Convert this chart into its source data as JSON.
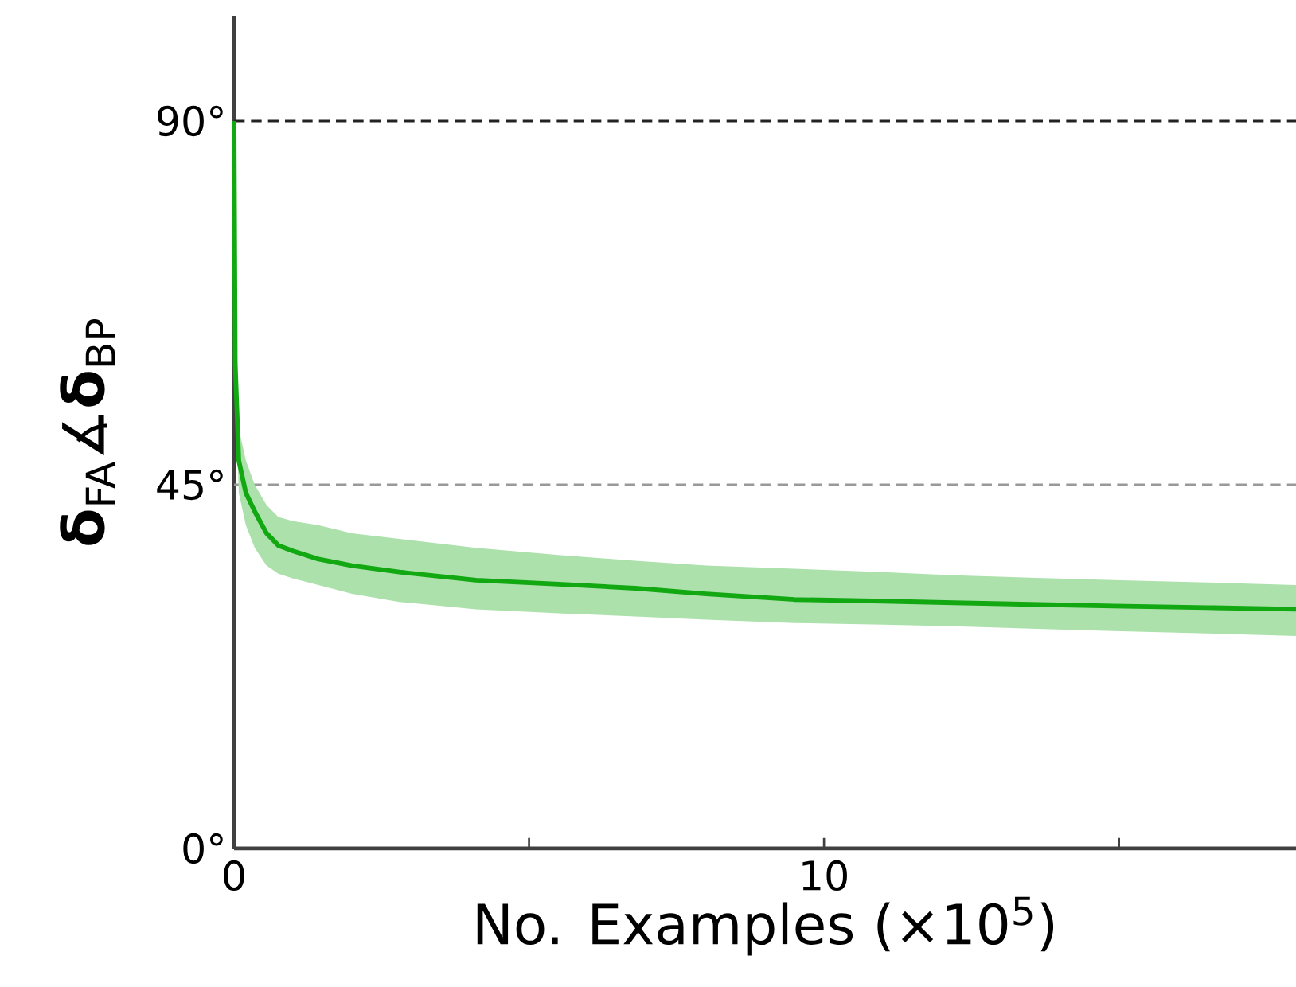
{
  "chart_data": {
    "type": "line",
    "xlabel": "No. Examples (×10$^{5}$)",
    "ylabel": "**δ**$_{FA}$∡**δ**$_{BP}$",
    "x": [
      0,
      0.02,
      0.08,
      0.2,
      0.35,
      0.55,
      0.75,
      1.0,
      1.43,
      2,
      2.8,
      4.1,
      5.5,
      6.8,
      8,
      9.5,
      11,
      12.2,
      13.5,
      14.9,
      16.5,
      18
    ],
    "series": [
      {
        "color": "#12a812",
        "values": [
          90,
          60,
          48,
          44,
          41.7,
          39,
          37.5,
          36.8,
          35.8,
          35,
          34.2,
          33.2,
          32.7,
          32.2,
          31.5,
          30.8,
          30.6,
          30.4,
          30.2,
          30,
          29.8,
          29.6
        ],
        "upper": [
          90,
          62,
          52,
          48,
          45,
          42.5,
          41,
          40.5,
          40,
          39,
          38.3,
          37.2,
          36.3,
          35.6,
          35,
          34.6,
          34.2,
          33.8,
          33.5,
          33.2,
          32.9,
          32.6
        ],
        "lower": [
          90,
          57,
          44,
          40,
          37.2,
          35,
          34,
          33.4,
          32.6,
          31.5,
          30.5,
          29.6,
          29.1,
          28.7,
          28.3,
          27.9,
          27.7,
          27.5,
          27.2,
          26.9,
          26.6,
          26.3
        ]
      }
    ],
    "xlim": [
      0,
      18
    ],
    "ylim": [
      0,
      103
    ],
    "xticks": [
      0,
      {
        "value": 5,
        "label": null
      },
      10,
      {
        "value": 15,
        "label": null
      }
    ],
    "yticks": [
      {
        "value": 0,
        "label": "0°"
      },
      {
        "value": 45,
        "label": "45°"
      },
      {
        "value": 90,
        "label": "90°"
      }
    ],
    "ref_lines": [
      {
        "axis": "y",
        "value": 90,
        "color": "#222222",
        "line_style": "dashed"
      },
      {
        "axis": "y",
        "value": 45,
        "color": "#999999",
        "line_style": "dashed"
      }
    ],
    "grid": false,
    "marker": "none",
    "line_style": "solid"
  }
}
